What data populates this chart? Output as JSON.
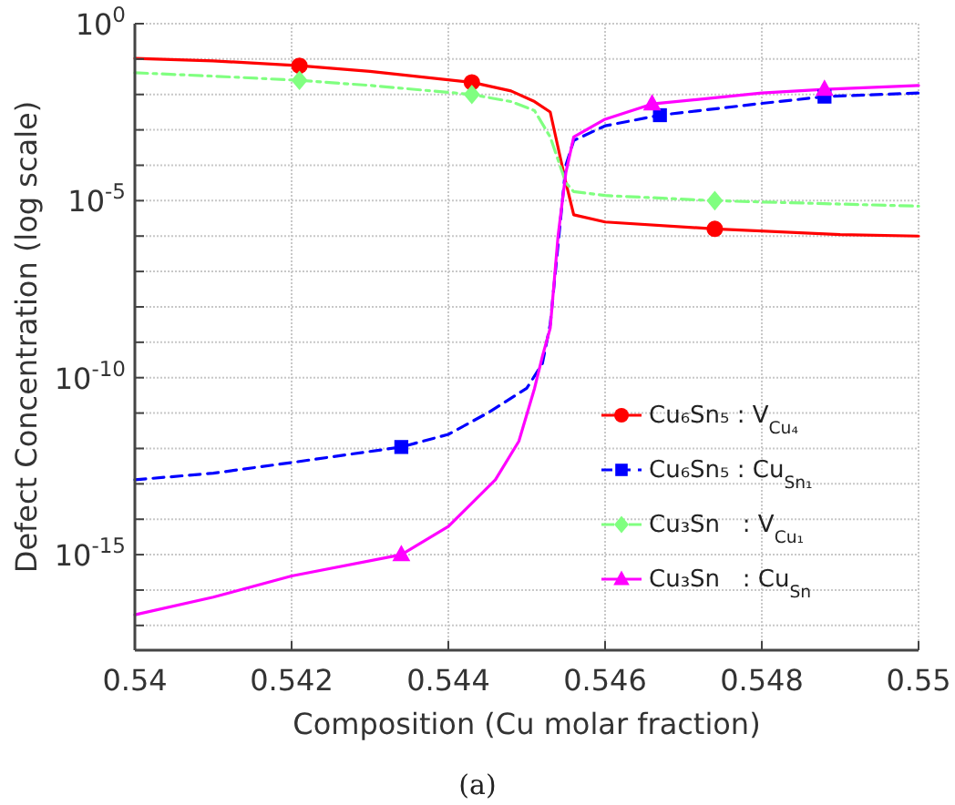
{
  "chart_data": {
    "type": "line",
    "xlabel": "Composition (Cu molar fraction)",
    "ylabel": "Defect Concentration (log scale)",
    "annotations": [
      "(a)"
    ],
    "log": "y",
    "grid": true,
    "legend": "right",
    "xlim": [
      0.54,
      0.55
    ],
    "xticks": [
      0.54,
      0.542,
      0.544,
      0.546,
      0.548,
      0.55
    ],
    "ylim": [
      2e-18,
      1
    ],
    "yticks": [
      {
        "value": 1,
        "label": "10$^{0}$"
      },
      {
        "value": 0.1,
        "label": null
      },
      {
        "value": 0.01,
        "label": null
      },
      {
        "value": 0.001,
        "label": null
      },
      {
        "value": 0.0001,
        "label": null
      },
      {
        "value": 1e-05,
        "label": "10$^{-5}$"
      },
      {
        "value": 1e-06,
        "label": null
      },
      {
        "value": 1e-07,
        "label": null
      },
      {
        "value": 1e-08,
        "label": null
      },
      {
        "value": 1e-09,
        "label": null
      },
      {
        "value": 1e-10,
        "label": "10$^{-10}$"
      },
      {
        "value": 1e-11,
        "label": null
      },
      {
        "value": 1e-12,
        "label": null
      },
      {
        "value": 1e-13,
        "label": null
      },
      {
        "value": 1e-14,
        "label": null
      },
      {
        "value": 1e-15,
        "label": "10$^{-15}$"
      },
      {
        "value": 1e-16,
        "label": null
      },
      {
        "value": 1e-17,
        "label": null
      }
    ],
    "series": [
      {
        "name": "Cu₆Sn₅ : V$_{Cu₄}$",
        "type": "line",
        "color": "#ff0000",
        "line_style": "solid",
        "x": [
          0.54,
          0.541,
          0.5421,
          0.543,
          0.5443,
          0.5448,
          0.5451,
          0.5453,
          0.5455,
          0.5456,
          0.546,
          0.5474,
          0.549,
          0.55
        ],
        "values": [
          0.105,
          0.089,
          0.065,
          0.045,
          0.022,
          0.0126,
          0.0063,
          0.0032,
          3.2e-05,
          4e-06,
          2.5e-06,
          1.6e-06,
          1.1e-06,
          1e-06
        ]
      },
      {
        "name": "Cu₆Sn₅ : Cu$_{Sn₁}$",
        "type": "line",
        "color": "#0000ff",
        "line_style": "dashed",
        "x": [
          0.54,
          0.541,
          0.542,
          0.5434,
          0.544,
          0.5445,
          0.545,
          0.5452,
          0.5453,
          0.5454,
          0.5455,
          0.5456,
          0.546,
          0.5467,
          0.548,
          0.5488,
          0.55
        ],
        "values": [
          1.3e-13,
          2e-13,
          4e-13,
          1.1e-12,
          2.5e-12,
          1e-11,
          5e-11,
          2.5e-10,
          3.2e-09,
          null,
          0.0001,
          0.0005,
          0.0013,
          0.0026,
          0.0056,
          0.0087,
          0.011
        ]
      },
      {
        "name": "Cu₃Sn   : V$_{Cu₁}$",
        "type": "line",
        "color": "#80ff80",
        "line_style": "dashdot",
        "x": [
          0.54,
          0.541,
          0.5421,
          0.543,
          0.5443,
          0.5448,
          0.5451,
          0.5453,
          0.5455,
          0.5456,
          0.546,
          0.5474,
          0.55
        ],
        "values": [
          0.041,
          0.033,
          0.025,
          0.018,
          0.01,
          0.0063,
          0.0035,
          0.00063,
          3.2e-05,
          1.8e-05,
          1.4e-05,
          1e-05,
          7e-06
        ]
      },
      {
        "name": "Cu₃Sn   : Cu$_{Sn}$",
        "type": "line",
        "color": "#ff00ff",
        "line_style": "solid",
        "x": [
          0.54,
          0.541,
          0.542,
          0.5434,
          0.544,
          0.5446,
          0.5449,
          0.5451,
          0.5452,
          0.5453,
          0.5454,
          0.5455,
          0.5456,
          0.546,
          0.5466,
          0.548,
          0.5488,
          0.55
        ],
        "values": [
          2e-17,
          6.3e-17,
          2.5e-16,
          1e-15,
          6.3e-15,
          1.3e-13,
          1.6e-12,
          5e-11,
          4e-10,
          2.5e-09,
          1e-06,
          6.3e-05,
          0.00063,
          0.002,
          0.0054,
          0.011,
          0.014,
          0.018
        ]
      },
      {
        "type": "scatter",
        "color": "#ff0000",
        "marker": "circle",
        "x": [
          0.5421,
          0.5443,
          0.5474
        ],
        "values": [
          0.065,
          0.022,
          1.6e-06
        ]
      },
      {
        "type": "scatter",
        "color": "#0000ff",
        "marker": "square",
        "x": [
          0.5434,
          0.5467,
          0.5488
        ],
        "values": [
          1.1e-12,
          0.0026,
          0.0087
        ]
      },
      {
        "type": "scatter",
        "color": "#80ff80",
        "marker": "diamond",
        "x": [
          0.5421,
          0.5443,
          0.5474
        ],
        "values": [
          0.025,
          0.01,
          1e-05
        ]
      },
      {
        "type": "scatter",
        "color": "#ff00ff",
        "marker": "triangle",
        "x": [
          0.5434,
          0.5466,
          0.5488
        ],
        "values": [
          1e-15,
          0.0054,
          0.014
        ]
      }
    ]
  }
}
